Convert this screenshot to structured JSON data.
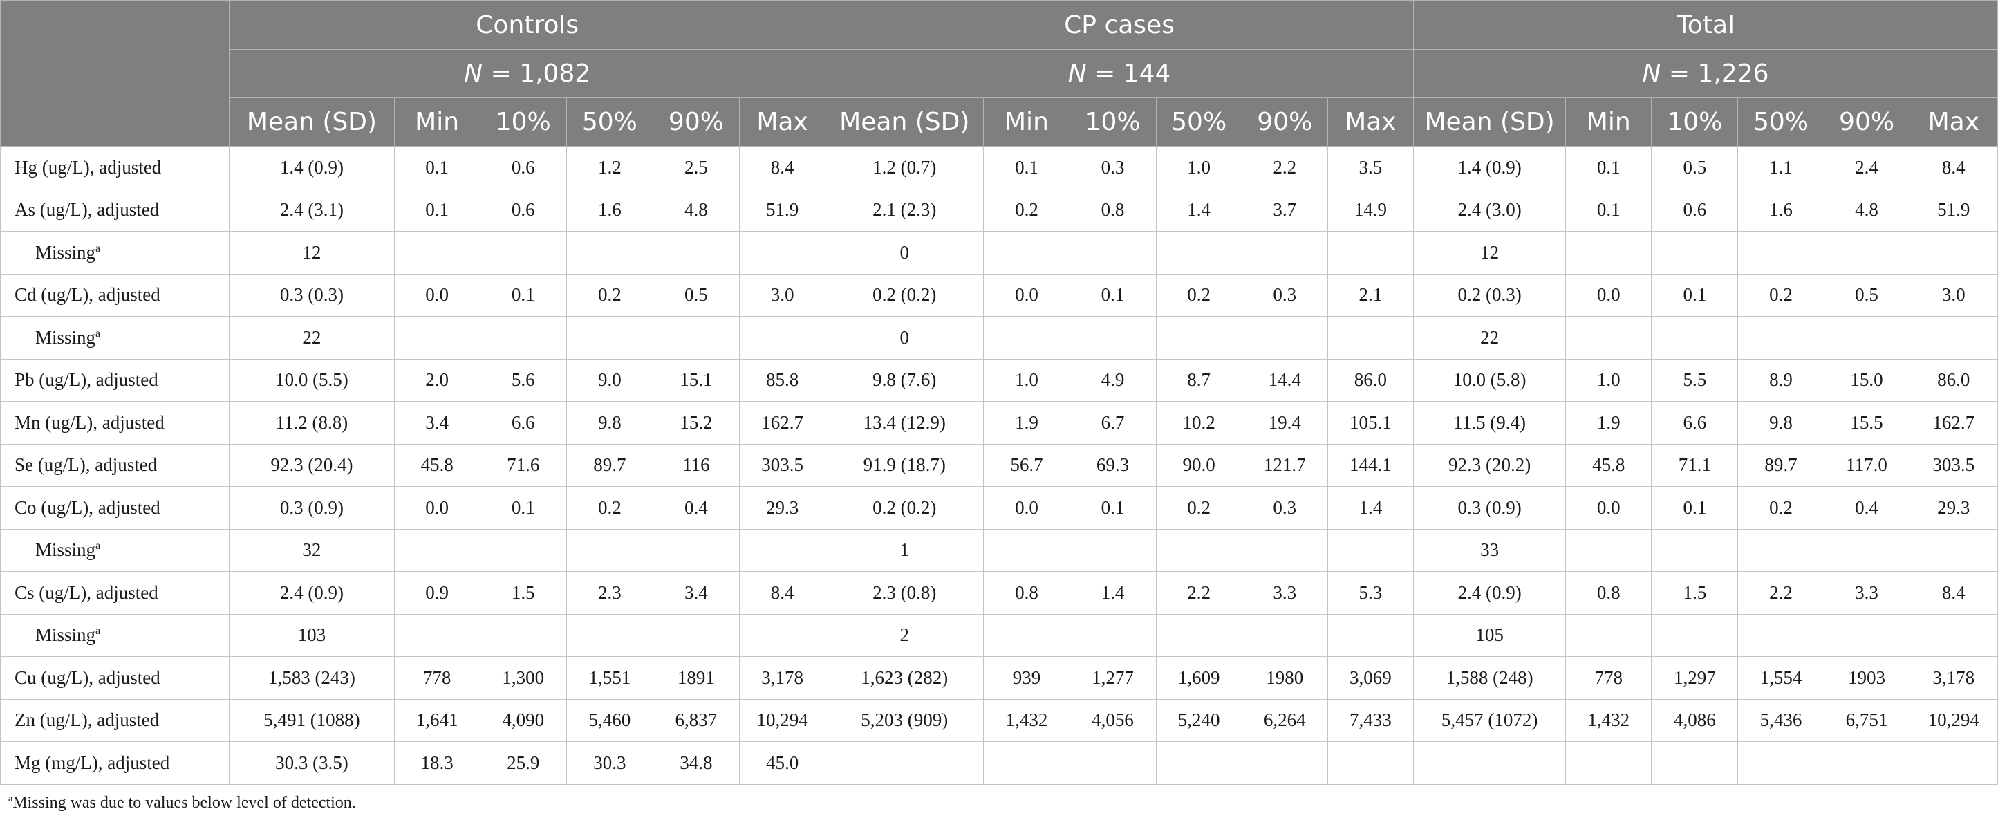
{
  "groups": [
    {
      "name": "Controls",
      "n_label": "N",
      "n_value": " = 1,082"
    },
    {
      "name": "CP cases",
      "n_label": "N",
      "n_value": " = 144"
    },
    {
      "name": "Total",
      "n_label": "N",
      "n_value": " = 1,226"
    }
  ],
  "stat_headers": [
    "Mean (SD)",
    "Min",
    "10%",
    "50%",
    "90%",
    "Max"
  ],
  "rows": [
    {
      "label": "Hg (ug/L), adjusted",
      "indent": false,
      "cells": [
        "1.4 (0.9)",
        "0.1",
        "0.6",
        "1.2",
        "2.5",
        "8.4",
        "1.2 (0.7)",
        "0.1",
        "0.3",
        "1.0",
        "2.2",
        "3.5",
        "1.4 (0.9)",
        "0.1",
        "0.5",
        "1.1",
        "2.4",
        "8.4"
      ]
    },
    {
      "label": "As (ug/L), adjusted",
      "indent": false,
      "cells": [
        "2.4 (3.1)",
        "0.1",
        "0.6",
        "1.6",
        "4.8",
        "51.9",
        "2.1 (2.3)",
        "0.2",
        "0.8",
        "1.4",
        "3.7",
        "14.9",
        "2.4 (3.0)",
        "0.1",
        "0.6",
        "1.6",
        "4.8",
        "51.9"
      ]
    },
    {
      "label": "Missing",
      "sup": "a",
      "indent": true,
      "cells": [
        "12",
        "",
        "",
        "",
        "",
        "",
        "0",
        "",
        "",
        "",
        "",
        "",
        "12",
        "",
        "",
        "",
        "",
        ""
      ]
    },
    {
      "label": "Cd (ug/L), adjusted",
      "indent": false,
      "cells": [
        "0.3 (0.3)",
        "0.0",
        "0.1",
        "0.2",
        "0.5",
        "3.0",
        "0.2 (0.2)",
        "0.0",
        "0.1",
        "0.2",
        "0.3",
        "2.1",
        "0.2 (0.3)",
        "0.0",
        "0.1",
        "0.2",
        "0.5",
        "3.0"
      ]
    },
    {
      "label": "Missing",
      "sup": "a",
      "indent": true,
      "cells": [
        "22",
        "",
        "",
        "",
        "",
        "",
        "0",
        "",
        "",
        "",
        "",
        "",
        "22",
        "",
        "",
        "",
        "",
        ""
      ]
    },
    {
      "label": "Pb (ug/L), adjusted",
      "indent": false,
      "cells": [
        "10.0 (5.5)",
        "2.0",
        "5.6",
        "9.0",
        "15.1",
        "85.8",
        "9.8 (7.6)",
        "1.0",
        "4.9",
        "8.7",
        "14.4",
        "86.0",
        "10.0 (5.8)",
        "1.0",
        "5.5",
        "8.9",
        "15.0",
        "86.0"
      ]
    },
    {
      "label": "Mn (ug/L), adjusted",
      "indent": false,
      "cells": [
        "11.2 (8.8)",
        "3.4",
        "6.6",
        "9.8",
        "15.2",
        "162.7",
        "13.4 (12.9)",
        "1.9",
        "6.7",
        "10.2",
        "19.4",
        "105.1",
        "11.5 (9.4)",
        "1.9",
        "6.6",
        "9.8",
        "15.5",
        "162.7"
      ]
    },
    {
      "label": "Se (ug/L), adjusted",
      "indent": false,
      "cells": [
        "92.3 (20.4)",
        "45.8",
        "71.6",
        "89.7",
        "116",
        "303.5",
        "91.9 (18.7)",
        "56.7",
        "69.3",
        "90.0",
        "121.7",
        "144.1",
        "92.3 (20.2)",
        "45.8",
        "71.1",
        "89.7",
        "117.0",
        "303.5"
      ]
    },
    {
      "label": "Co (ug/L), adjusted",
      "indent": false,
      "cells": [
        "0.3 (0.9)",
        "0.0",
        "0.1",
        "0.2",
        "0.4",
        "29.3",
        "0.2 (0.2)",
        "0.0",
        "0.1",
        "0.2",
        "0.3",
        "1.4",
        "0.3 (0.9)",
        "0.0",
        "0.1",
        "0.2",
        "0.4",
        "29.3"
      ]
    },
    {
      "label": "Missing",
      "sup": "a",
      "indent": true,
      "cells": [
        "32",
        "",
        "",
        "",
        "",
        "",
        "1",
        "",
        "",
        "",
        "",
        "",
        "33",
        "",
        "",
        "",
        "",
        ""
      ]
    },
    {
      "label": "Cs (ug/L), adjusted",
      "indent": false,
      "cells": [
        "2.4 (0.9)",
        "0.9",
        "1.5",
        "2.3",
        "3.4",
        "8.4",
        "2.3 (0.8)",
        "0.8",
        "1.4",
        "2.2",
        "3.3",
        "5.3",
        "2.4 (0.9)",
        "0.8",
        "1.5",
        "2.2",
        "3.3",
        "8.4"
      ]
    },
    {
      "label": "Missing",
      "sup": "a",
      "indent": true,
      "cells": [
        "103",
        "",
        "",
        "",
        "",
        "",
        "2",
        "",
        "",
        "",
        "",
        "",
        "105",
        "",
        "",
        "",
        "",
        ""
      ]
    },
    {
      "label": "Cu (ug/L), adjusted",
      "indent": false,
      "cells": [
        "1,583 (243)",
        "778",
        "1,300",
        "1,551",
        "1891",
        "3,178",
        "1,623 (282)",
        "939",
        "1,277",
        "1,609",
        "1980",
        "3,069",
        "1,588 (248)",
        "778",
        "1,297",
        "1,554",
        "1903",
        "3,178"
      ]
    },
    {
      "label": "Zn (ug/L), adjusted",
      "indent": false,
      "cells": [
        "5,491 (1088)",
        "1,641",
        "4,090",
        "5,460",
        "6,837",
        "10,294",
        "5,203 (909)",
        "1,432",
        "4,056",
        "5,240",
        "6,264",
        "7,433",
        "5,457 (1072)",
        "1,432",
        "4,086",
        "5,436",
        "6,751",
        "10,294"
      ]
    },
    {
      "label": "Mg (mg/L), adjusted",
      "indent": false,
      "cells": [
        "30.3 (3.5)",
        "18.3",
        "25.9",
        "30.3",
        "34.8",
        "45.0",
        "",
        "",
        "",
        "",
        "",
        "",
        "",
        "",
        "",
        "",
        "",
        ""
      ]
    }
  ],
  "footnote": {
    "sup": "a",
    "text": "Missing was due to values below level of detection."
  }
}
